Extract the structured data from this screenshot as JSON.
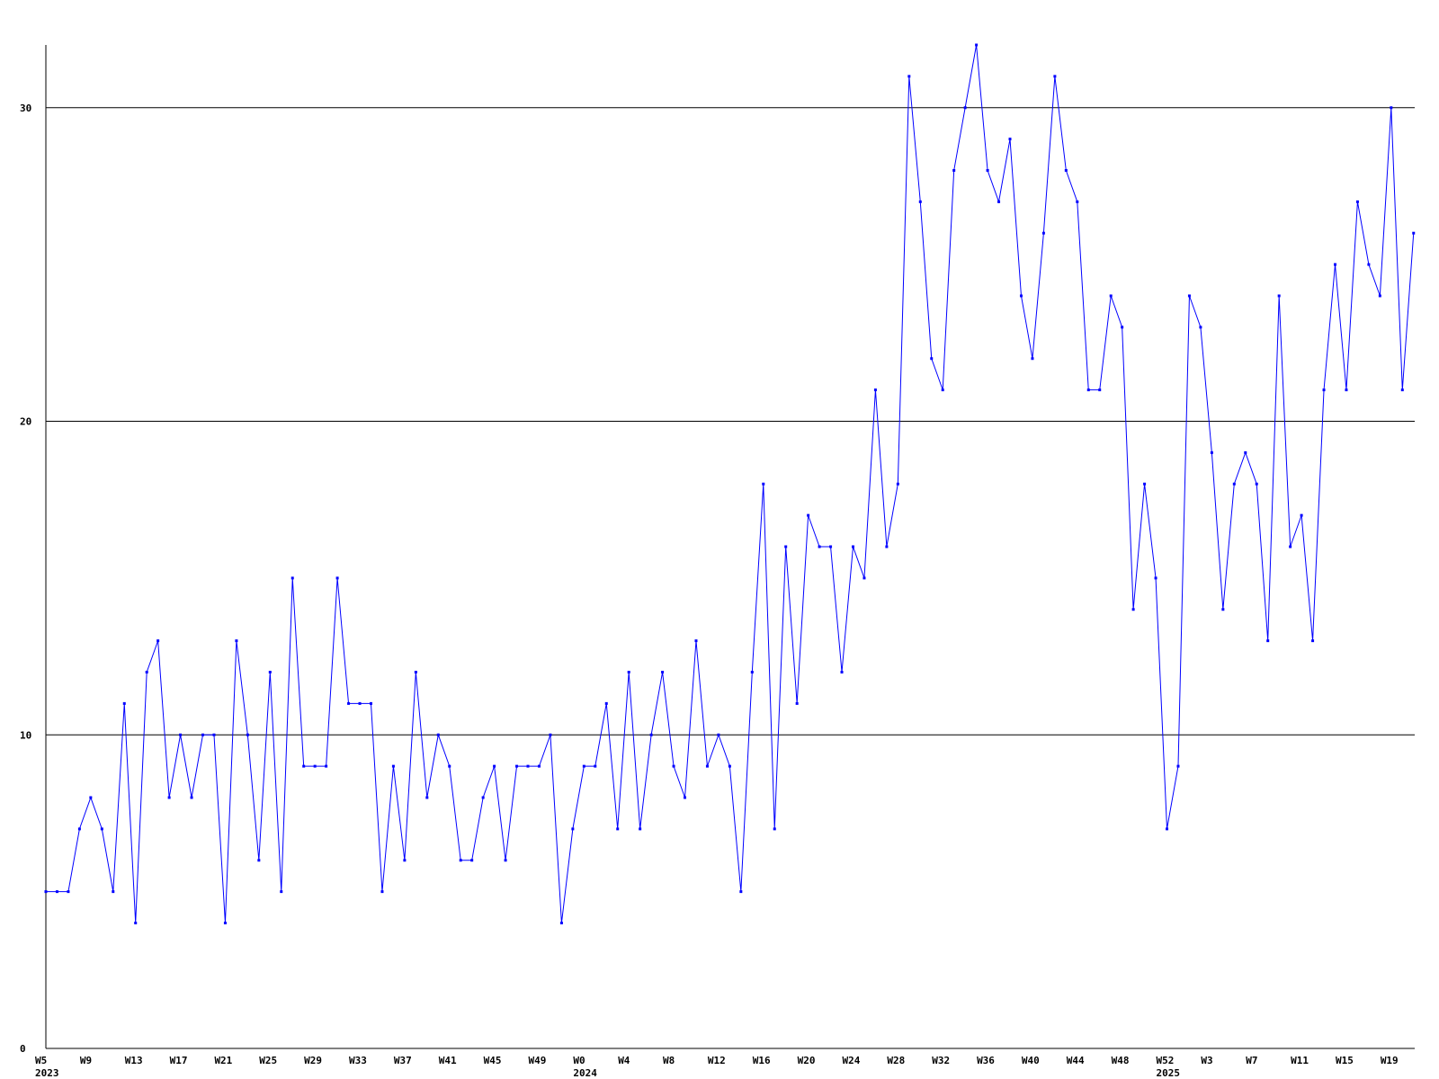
{
  "chart_data": {
    "type": "line",
    "title": "",
    "xlabel": "",
    "ylabel": "",
    "ylim": [
      0,
      32
    ],
    "yticks": [
      0,
      10,
      20,
      30
    ],
    "grid": "horizontal lines at y ticks",
    "legend": "none",
    "colors": {
      "line": "#0000ff",
      "grid": "#000000",
      "axis": "#000000",
      "background": "#ffffff"
    },
    "x_start_index": 5,
    "x_tick_labels": [
      {
        "index": 5,
        "label": "W5",
        "year": "2023"
      },
      {
        "index": 9,
        "label": "W9"
      },
      {
        "index": 13,
        "label": "W13"
      },
      {
        "index": 17,
        "label": "W17"
      },
      {
        "index": 21,
        "label": "W21"
      },
      {
        "index": 25,
        "label": "W25"
      },
      {
        "index": 29,
        "label": "W29"
      },
      {
        "index": 33,
        "label": "W33"
      },
      {
        "index": 37,
        "label": "W37"
      },
      {
        "index": 41,
        "label": "W41"
      },
      {
        "index": 45,
        "label": "W45"
      },
      {
        "index": 49,
        "label": "W49"
      },
      {
        "index": 53,
        "label": "W0",
        "year": "2024"
      },
      {
        "index": 57,
        "label": "W4"
      },
      {
        "index": 61,
        "label": "W8"
      },
      {
        "index": 65,
        "label": "W12"
      },
      {
        "index": 69,
        "label": "W16"
      },
      {
        "index": 73,
        "label": "W20"
      },
      {
        "index": 77,
        "label": "W24"
      },
      {
        "index": 81,
        "label": "W28"
      },
      {
        "index": 85,
        "label": "W32"
      },
      {
        "index": 89,
        "label": "W36"
      },
      {
        "index": 93,
        "label": "W40"
      },
      {
        "index": 97,
        "label": "W44"
      },
      {
        "index": 101,
        "label": "W48"
      },
      {
        "index": 105,
        "label": "W52",
        "year": "2025"
      },
      {
        "index": 109,
        "label": "W3"
      },
      {
        "index": 113,
        "label": "W7"
      },
      {
        "index": 117,
        "label": "W11"
      },
      {
        "index": 121,
        "label": "W15"
      },
      {
        "index": 125,
        "label": "W19"
      }
    ],
    "x_end_index": 127.1,
    "series": [
      {
        "values": [
          5,
          5,
          5,
          7,
          8,
          7,
          5,
          11,
          4,
          12,
          13,
          8,
          10,
          8,
          10,
          10,
          4,
          13,
          10,
          6,
          12,
          5,
          15,
          9,
          9,
          9,
          15,
          11,
          11,
          11,
          5,
          9,
          6,
          12,
          8,
          10,
          9,
          6,
          6,
          8,
          9,
          6,
          9,
          9,
          9,
          10,
          4,
          7,
          9,
          9,
          11,
          7,
          12,
          7,
          10,
          12,
          9,
          8,
          13,
          9,
          10,
          9,
          5,
          12,
          18,
          7,
          16,
          11,
          17,
          16,
          16,
          12,
          16,
          15,
          21,
          16,
          18,
          31,
          27,
          22,
          21,
          28,
          30,
          32,
          28,
          27,
          29,
          24,
          22,
          26,
          31,
          28,
          27,
          21,
          21,
          24,
          23,
          14,
          18,
          15,
          7,
          9,
          24,
          23,
          19,
          14,
          18,
          19,
          18,
          13,
          24,
          16,
          17,
          13,
          21,
          25,
          21,
          27,
          25,
          24,
          30,
          21,
          26
        ]
      }
    ]
  }
}
